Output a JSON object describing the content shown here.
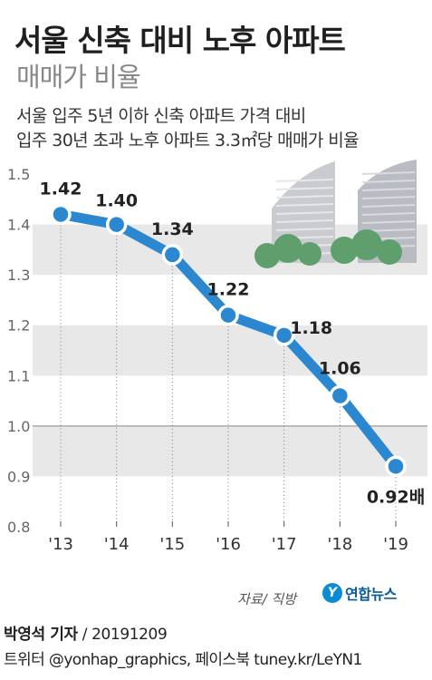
{
  "header": {
    "title": "서울 신축 대비 노후 아파트",
    "subtitle": "매매가 비율",
    "desc_line1": "서울 입주 5년 이하 신축 아파트 가격 대비",
    "desc_line2": "입주 30년 초과 노후 아파트 3.3㎡당 매매가 비율"
  },
  "colors": {
    "line": "#2b87cf",
    "band": "#e8e8e8",
    "buildings": "#c9cbcf",
    "trees": "#5f9f6e"
  },
  "chart_data": {
    "type": "line",
    "title": "서울 신축 대비 노후 아파트 매매가 비율",
    "categories": [
      "'13",
      "'14",
      "'15",
      "'16",
      "'17",
      "'18",
      "'19"
    ],
    "values": [
      1.42,
      1.4,
      1.34,
      1.22,
      1.18,
      1.06,
      0.92
    ],
    "data_labels": [
      "1.42",
      "1.40",
      "1.34",
      "1.22",
      "1.18",
      "1.06",
      "0.92배"
    ],
    "y_ticks": [
      "0.8",
      "0.9",
      "1.0",
      "1.1",
      "1.2",
      "1.3",
      "1.4",
      "1.5"
    ],
    "ylim": [
      0.8,
      1.5
    ],
    "grid": "alternating horizontal bands",
    "xlabel": "",
    "ylabel": ""
  },
  "footer": {
    "source": "자료/ 직방",
    "logo_mark": "Y",
    "logo_text": "연합뉴스",
    "reporter": "박영석 기자",
    "date": "/ 20191209",
    "social": "트위터 @yonhap_graphics, 페이스북 tuney.kr/LeYN1"
  }
}
